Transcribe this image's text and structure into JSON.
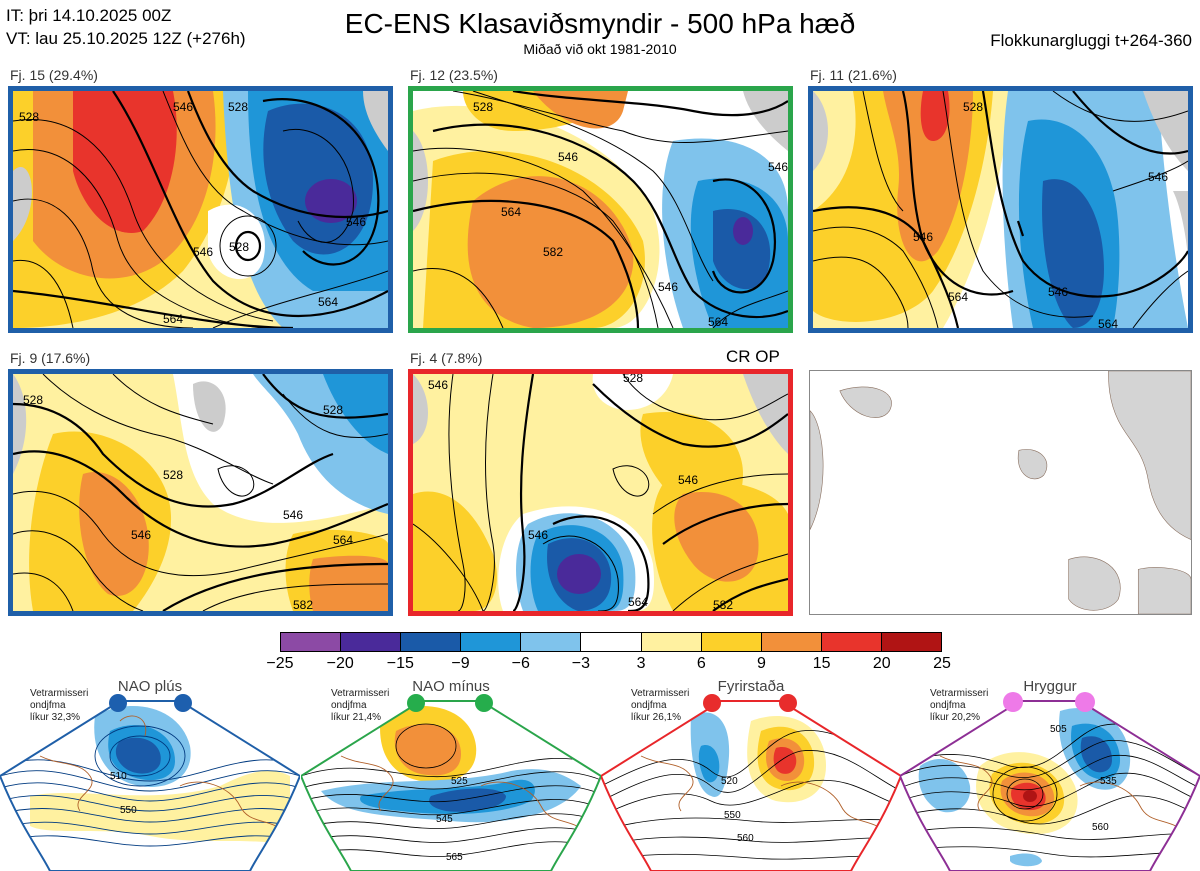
{
  "header": {
    "it_line": "IT: þri 14.10.2025 00Z",
    "vt_line": "VT: lau 25.10.2025 12Z  (+276h)",
    "title": "EC-ENS Klasaviðsmyndir - 500 hPa hæð",
    "subtitle": "Miðað við okt 1981-2010",
    "window": "Flokkunargluggi t+264-360"
  },
  "panels": [
    {
      "label": "Fj. 15 (29.4%)",
      "border_color": "#1f5fa8"
    },
    {
      "label": "Fj. 12 (23.5%)",
      "border_color": "#2aa54b"
    },
    {
      "label": "Fj. 11 (21.6%)",
      "border_color": "#1f5fa8"
    },
    {
      "label": "Fj. 9 (17.6%)",
      "border_color": "#1f5fa8"
    },
    {
      "label": "Fj. 4 (7.8%)",
      "border_color": "#e8262a"
    }
  ],
  "op_label": "CR OP",
  "colorbar": {
    "colors": [
      "#8c4aa5",
      "#4a2a9a",
      "#1a5aa8",
      "#1f96d8",
      "#7fc3ec",
      "#ffffff",
      "#fff1a0",
      "#fcd02a",
      "#f2903a",
      "#e8342c",
      "#b01414"
    ],
    "ticks": [
      "−25",
      "−20",
      "−15",
      "−9",
      "−6",
      "−3",
      "3",
      "6",
      "9",
      "15",
      "20",
      "25"
    ]
  },
  "regimes": [
    {
      "name": "NAO plús",
      "note1": "Vetrarmisseri",
      "note2": "ondjfma",
      "note3": "líkur 32,3%",
      "color": "#1f5fa8",
      "dot_color": "#1d5fae",
      "contour_labels": [
        "510",
        "550"
      ]
    },
    {
      "name": "NAO mínus",
      "note1": "Vetrarmisseri",
      "note2": "ondjfma",
      "note3": "líkur 21,4%",
      "color": "#2aa54b",
      "dot_color": "#26ad4c",
      "contour_labels": [
        "525",
        "545",
        "565"
      ]
    },
    {
      "name": "Fyrirstaða",
      "note1": "Vetrarmisseri",
      "note2": "ondjfma",
      "note3": "líkur 26,1%",
      "color": "#e8262a",
      "dot_color": "#e82c2c",
      "contour_labels": [
        "520",
        "550",
        "560"
      ]
    },
    {
      "name": "Hryggur",
      "note1": "Vetrarmisseri",
      "note2": "ondjfma",
      "note3": "líkur 20,2%",
      "color": "#8d2f95",
      "dot_color": "#ee7ae8",
      "contour_labels": [
        "505",
        "535",
        "560"
      ]
    }
  ],
  "map_labels": {
    "p0": [
      "528",
      "546",
      "528",
      "546",
      "564",
      "564",
      "546",
      "528"
    ],
    "p1": [
      "528",
      "546",
      "564",
      "582",
      "546",
      "564",
      "546"
    ],
    "p2": [
      "528",
      "546",
      "564",
      "546",
      "564",
      "546"
    ],
    "p3": [
      "528",
      "528",
      "546",
      "528",
      "564",
      "582",
      "546"
    ],
    "p4": [
      "546",
      "528",
      "546",
      "564",
      "582",
      "546"
    ]
  }
}
